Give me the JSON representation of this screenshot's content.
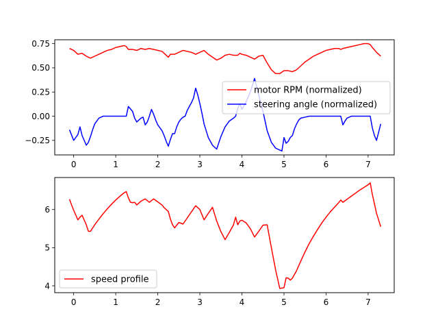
{
  "chart_data": [
    {
      "type": "line",
      "title": "",
      "xlabel": "",
      "ylabel": "",
      "xlim": [
        -0.45,
        7.62
      ],
      "ylim": [
        -0.4,
        0.79
      ],
      "xticks": [
        0,
        1,
        2,
        3,
        4,
        5,
        6,
        7
      ],
      "yticks": [
        -0.25,
        0.0,
        0.25,
        0.5,
        0.75
      ],
      "xtick_labels": [
        "0",
        "1",
        "2",
        "3",
        "4",
        "5",
        "6",
        "7"
      ],
      "ytick_labels": [
        "−0.25",
        "0.00",
        "0.25",
        "0.50",
        "0.75"
      ],
      "grid": false,
      "legend": {
        "placement": "center-right"
      },
      "series": [
        {
          "name": "motor RPM (normalized)",
          "color": "#ff0000",
          "x": [
            -0.1,
            0.0,
            0.1,
            0.2,
            0.3,
            0.4,
            0.5,
            0.6,
            0.7,
            0.8,
            0.9,
            1.0,
            1.1,
            1.2,
            1.25,
            1.3,
            1.4,
            1.5,
            1.6,
            1.7,
            1.8,
            1.9,
            2.0,
            2.1,
            2.2,
            2.25,
            2.3,
            2.4,
            2.5,
            2.6,
            2.7,
            2.8,
            2.9,
            3.0,
            3.1,
            3.2,
            3.3,
            3.4,
            3.5,
            3.6,
            3.7,
            3.8,
            3.9,
            3.95,
            4.0,
            4.1,
            4.2,
            4.3,
            4.4,
            4.5,
            4.6,
            4.7,
            4.8,
            4.9,
            5.0,
            5.1,
            5.2,
            5.3,
            5.4,
            5.5,
            5.6,
            5.7,
            5.8,
            5.9,
            6.0,
            6.1,
            6.2,
            6.3,
            6.35,
            6.4,
            6.5,
            6.6,
            6.7,
            6.8,
            6.9,
            7.0,
            7.05,
            7.1,
            7.2,
            7.3
          ],
          "y": [
            0.7,
            0.68,
            0.64,
            0.65,
            0.62,
            0.6,
            0.62,
            0.64,
            0.66,
            0.68,
            0.69,
            0.71,
            0.72,
            0.73,
            0.72,
            0.69,
            0.69,
            0.68,
            0.7,
            0.69,
            0.7,
            0.69,
            0.68,
            0.67,
            0.63,
            0.61,
            0.64,
            0.64,
            0.66,
            0.68,
            0.67,
            0.66,
            0.64,
            0.66,
            0.68,
            0.64,
            0.61,
            0.58,
            0.6,
            0.63,
            0.64,
            0.63,
            0.63,
            0.65,
            0.64,
            0.63,
            0.61,
            0.59,
            0.62,
            0.63,
            0.55,
            0.48,
            0.44,
            0.44,
            0.47,
            0.47,
            0.46,
            0.48,
            0.52,
            0.56,
            0.59,
            0.62,
            0.64,
            0.66,
            0.68,
            0.69,
            0.7,
            0.7,
            0.69,
            0.7,
            0.71,
            0.72,
            0.73,
            0.74,
            0.75,
            0.75,
            0.74,
            0.71,
            0.66,
            0.62
          ]
        },
        {
          "name": "steering angle (normalized)",
          "color": "#0000ff",
          "x": [
            -0.1,
            0.0,
            0.05,
            0.1,
            0.15,
            0.2,
            0.25,
            0.3,
            0.35,
            0.4,
            0.45,
            0.5,
            0.6,
            0.7,
            0.8,
            0.9,
            1.0,
            1.1,
            1.2,
            1.25,
            1.3,
            1.4,
            1.45,
            1.5,
            1.55,
            1.6,
            1.65,
            1.7,
            1.75,
            1.8,
            1.85,
            1.9,
            1.95,
            2.0,
            2.05,
            2.1,
            2.15,
            2.2,
            2.25,
            2.3,
            2.35,
            2.4,
            2.45,
            2.5,
            2.55,
            2.6,
            2.65,
            2.7,
            2.75,
            2.8,
            2.85,
            2.9,
            2.95,
            3.0,
            3.05,
            3.1,
            3.15,
            3.2,
            3.3,
            3.4,
            3.5,
            3.6,
            3.7,
            3.8,
            3.85,
            3.9,
            3.95,
            4.0,
            4.1,
            4.15,
            4.2,
            4.3,
            4.4,
            4.5,
            4.6,
            4.7,
            4.8,
            4.9,
            4.95,
            5.0,
            5.05,
            5.1,
            5.15,
            5.2,
            5.25,
            5.3,
            5.35,
            5.4,
            5.5,
            5.6,
            5.7,
            5.8,
            5.9,
            6.0,
            6.1,
            6.2,
            6.3,
            6.35,
            6.4,
            6.45,
            6.5,
            6.6,
            6.7,
            6.8,
            6.9,
            7.0,
            7.05,
            7.1,
            7.15,
            7.2,
            7.3
          ],
          "y": [
            -0.14,
            -0.25,
            -0.22,
            -0.19,
            -0.11,
            -0.2,
            -0.25,
            -0.3,
            -0.27,
            -0.21,
            -0.14,
            -0.08,
            -0.02,
            0.0,
            0.0,
            0.0,
            0.0,
            0.0,
            0.0,
            0.0,
            0.1,
            0.05,
            -0.02,
            -0.06,
            -0.04,
            -0.02,
            -0.01,
            -0.09,
            -0.06,
            0.0,
            0.07,
            0.02,
            -0.04,
            -0.09,
            -0.12,
            -0.15,
            -0.2,
            -0.26,
            -0.31,
            -0.24,
            -0.18,
            -0.18,
            -0.11,
            -0.06,
            -0.03,
            -0.01,
            0.0,
            0.06,
            0.1,
            0.14,
            0.19,
            0.29,
            0.22,
            0.13,
            0.03,
            -0.08,
            -0.15,
            -0.22,
            -0.3,
            -0.34,
            -0.21,
            -0.11,
            -0.05,
            -0.02,
            0.0,
            0.08,
            0.13,
            0.07,
            0.15,
            0.2,
            0.25,
            0.39,
            0.22,
            0.05,
            -0.15,
            -0.27,
            -0.33,
            -0.35,
            -0.36,
            -0.22,
            -0.28,
            -0.26,
            -0.22,
            -0.2,
            -0.13,
            -0.08,
            -0.04,
            -0.02,
            -0.01,
            0.0,
            0.0,
            0.0,
            0.0,
            0.0,
            0.0,
            0.0,
            0.0,
            0.0,
            -0.09,
            -0.05,
            -0.02,
            0.0,
            0.0,
            0.0,
            0.0,
            0.0,
            0.0,
            -0.12,
            -0.2,
            -0.25,
            -0.08
          ]
        }
      ]
    },
    {
      "type": "line",
      "title": "",
      "xlabel": "",
      "ylabel": "",
      "xlim": [
        -0.45,
        7.62
      ],
      "ylim": [
        3.82,
        6.84
      ],
      "xticks": [
        0,
        1,
        2,
        3,
        4,
        5,
        6,
        7
      ],
      "yticks": [
        4,
        5,
        6
      ],
      "xtick_labels": [
        "0",
        "1",
        "2",
        "3",
        "4",
        "5",
        "6",
        "7"
      ],
      "ytick_labels": [
        "4",
        "5",
        "6"
      ],
      "grid": false,
      "legend": {
        "placement": "lower-left"
      },
      "series": [
        {
          "name": "speed profile",
          "color": "#ff0000",
          "x": [
            -0.1,
            0.0,
            0.1,
            0.15,
            0.2,
            0.3,
            0.35,
            0.4,
            0.5,
            0.6,
            0.7,
            0.8,
            0.9,
            1.0,
            1.1,
            1.2,
            1.25,
            1.3,
            1.35,
            1.4,
            1.45,
            1.5,
            1.6,
            1.7,
            1.8,
            1.9,
            2.0,
            2.1,
            2.15,
            2.2,
            2.25,
            2.3,
            2.35,
            2.4,
            2.5,
            2.6,
            2.7,
            2.8,
            2.9,
            3.0,
            3.1,
            3.2,
            3.3,
            3.4,
            3.5,
            3.6,
            3.7,
            3.8,
            3.85,
            3.9,
            3.95,
            4.0,
            4.1,
            4.2,
            4.3,
            4.4,
            4.5,
            4.6,
            4.7,
            4.8,
            4.9,
            5.0,
            5.05,
            5.1,
            5.15,
            5.2,
            5.3,
            5.4,
            5.5,
            5.6,
            5.7,
            5.8,
            5.9,
            6.0,
            6.1,
            6.2,
            6.3,
            6.35,
            6.4,
            6.5,
            6.6,
            6.7,
            6.8,
            6.9,
            7.0,
            7.05,
            7.1,
            7.2,
            7.3
          ],
          "y": [
            6.27,
            5.98,
            5.73,
            5.8,
            5.85,
            5.6,
            5.43,
            5.43,
            5.6,
            5.75,
            5.89,
            6.02,
            6.14,
            6.25,
            6.35,
            6.44,
            6.47,
            6.31,
            6.19,
            6.18,
            6.19,
            6.12,
            6.22,
            6.28,
            6.19,
            6.28,
            6.2,
            6.12,
            6.05,
            6.0,
            5.95,
            5.75,
            5.6,
            5.52,
            5.66,
            5.62,
            5.78,
            5.94,
            6.1,
            6.0,
            5.73,
            5.9,
            6.06,
            5.7,
            5.42,
            5.21,
            5.4,
            5.6,
            5.8,
            5.6,
            5.7,
            5.72,
            5.65,
            5.5,
            5.28,
            5.43,
            5.59,
            5.6,
            5.0,
            4.42,
            3.93,
            3.95,
            4.21,
            4.2,
            4.15,
            4.2,
            4.4,
            4.65,
            4.89,
            5.11,
            5.3,
            5.48,
            5.65,
            5.8,
            5.94,
            6.06,
            6.18,
            6.25,
            6.19,
            6.27,
            6.35,
            6.43,
            6.51,
            6.58,
            6.65,
            6.7,
            6.4,
            5.9,
            5.55
          ]
        }
      ]
    }
  ]
}
